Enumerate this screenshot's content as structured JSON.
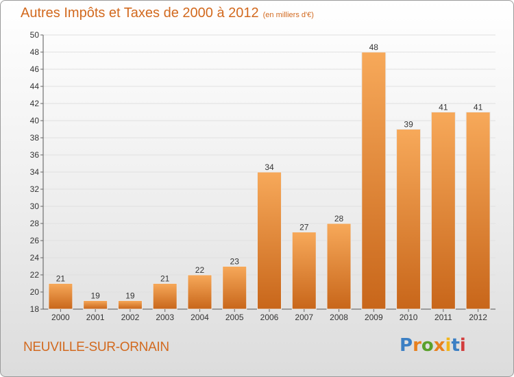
{
  "header": {
    "title": "Autres Impôts et Taxes de 2000 à 2012",
    "subtitle": "(en milliers d'€)"
  },
  "footer": {
    "city": "NEUVILLE-SUR-ORNAIN",
    "logo_letters": [
      "P",
      "r",
      "o",
      "x",
      "i",
      "t",
      "i"
    ]
  },
  "colors": {
    "title": "#d2691e",
    "bar_top": "#f7a95a",
    "bar_bottom": "#c8661a",
    "grid": "#e0e0e0"
  },
  "chart_data": {
    "type": "bar",
    "categories": [
      "2000",
      "2001",
      "2002",
      "2003",
      "2004",
      "2005",
      "2006",
      "2007",
      "2008",
      "2009",
      "2010",
      "2011",
      "2012"
    ],
    "values": [
      21,
      19,
      19,
      21,
      22,
      23,
      34,
      27,
      28,
      48,
      39,
      41,
      41
    ],
    "title": "Autres Impôts et Taxes de 2000 à 2012",
    "subtitle": "(en milliers d'€)",
    "ylim": [
      18,
      50
    ],
    "yticks": [
      18,
      20,
      22,
      24,
      26,
      28,
      30,
      32,
      34,
      36,
      38,
      40,
      42,
      44,
      46,
      48,
      50
    ],
    "grid": true,
    "data_labels": true
  }
}
